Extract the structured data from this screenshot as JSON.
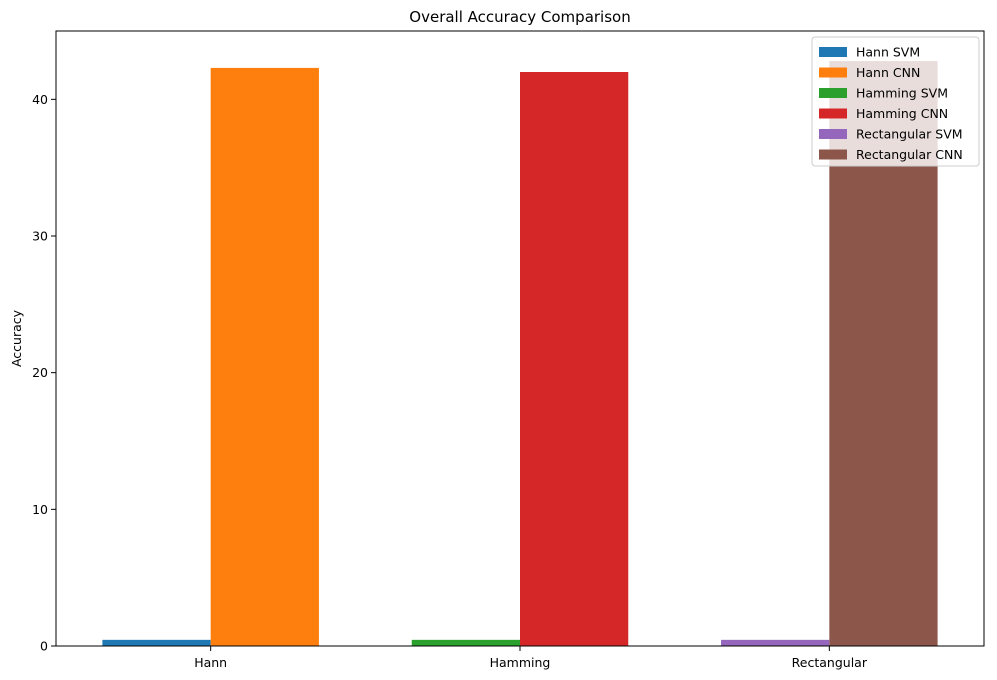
{
  "chart_data": {
    "type": "bar",
    "title": "Overall Accuracy Comparison",
    "xlabel": "",
    "ylabel": "Accuracy",
    "categories": [
      "Hann",
      "Hamming",
      "Rectangular"
    ],
    "ylim": [
      0,
      45
    ],
    "yticks": [
      0,
      10,
      20,
      30,
      40
    ],
    "grid": false,
    "legend_position": "top-right",
    "series": [
      {
        "name": "Hann SVM",
        "color": "#1f77b4",
        "values": [
          0.45,
          null,
          null
        ]
      },
      {
        "name": "Hann CNN",
        "color": "#ff7f0e",
        "values": [
          42.3,
          null,
          null
        ]
      },
      {
        "name": "Hamming SVM",
        "color": "#2ca02c",
        "values": [
          null,
          0.45,
          null
        ]
      },
      {
        "name": "Hamming CNN",
        "color": "#d62728",
        "values": [
          null,
          42.0,
          null
        ]
      },
      {
        "name": "Rectangular SVM",
        "color": "#9467bd",
        "values": [
          null,
          null,
          0.45
        ]
      },
      {
        "name": "Rectangular CNN",
        "color": "#8c564b",
        "values": [
          null,
          null,
          42.8
        ]
      }
    ]
  }
}
